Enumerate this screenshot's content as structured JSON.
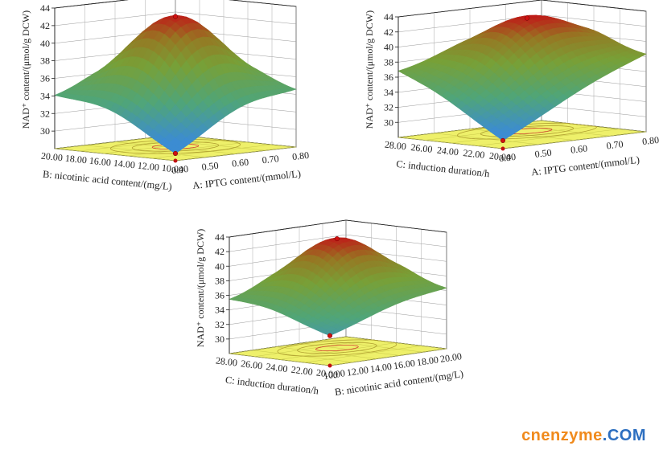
{
  "chart_data": [
    {
      "type": "surface",
      "zlabel": "NAD⁺ content/(μmol/g DCW)",
      "zticks": [
        "30",
        "32",
        "34",
        "36",
        "38",
        "40",
        "42",
        "44"
      ],
      "zlim": [
        28,
        44
      ],
      "x_axis": {
        "label": "A: IPTG content/(mmol/L)",
        "ticks": [
          "0.40",
          "0.50",
          "0.60",
          "0.70",
          "0.80"
        ],
        "range": [
          0.4,
          0.8
        ]
      },
      "y_axis": {
        "label": "B: nicotinic acid content/(mg/L)",
        "ticks": [
          "10.00",
          "12.00",
          "14.00",
          "16.00",
          "18.00",
          "20.00"
        ],
        "range": [
          10,
          20
        ]
      },
      "corner_values": {
        "x_min_y_min": 28.5,
        "x_max_y_min": 34.0,
        "x_min_y_max": 33.5,
        "x_max_y_max": 34.0
      },
      "peak": {
        "x": 0.62,
        "y": 15.5,
        "z": 42.8
      }
    },
    {
      "type": "surface",
      "zlabel": "NAD⁺ content/(μmol/g DCW)",
      "zticks": [
        "30",
        "32",
        "34",
        "36",
        "38",
        "40",
        "42",
        "44"
      ],
      "zlim": [
        28,
        44
      ],
      "x_axis": {
        "label": "A: IPTG content/(mmol/L)",
        "ticks": [
          "0.40",
          "0.50",
          "0.60",
          "0.70",
          "0.80"
        ],
        "range": [
          0.4,
          0.8
        ]
      },
      "y_axis": {
        "label": "C: induction duration/h",
        "ticks": [
          "20.00",
          "22.00",
          "24.00",
          "26.00",
          "28.00"
        ],
        "range": [
          20,
          28
        ]
      },
      "corner_values": {
        "x_min_y_min": 29.0,
        "x_max_y_min": 38.0,
        "x_min_y_max": 36.5,
        "x_max_y_max": 38.0
      },
      "peak": {
        "x": 0.65,
        "y": 25.0,
        "z": 43.0
      }
    },
    {
      "type": "surface",
      "zlabel": "NAD⁺ content/(μmol/g DCW)",
      "zticks": [
        "30",
        "32",
        "34",
        "36",
        "38",
        "40",
        "42",
        "44"
      ],
      "zlim": [
        28,
        44
      ],
      "x_axis": {
        "label": "B: nicotinic acid content/(mg/L)",
        "ticks": [
          "10.00",
          "12.00",
          "14.00",
          "16.00",
          "18.00",
          "20.00"
        ],
        "range": [
          10,
          20
        ]
      },
      "y_axis": {
        "label": "C: induction duration/h",
        "ticks": [
          "20.00",
          "22.00",
          "24.00",
          "26.00",
          "28.00"
        ],
        "range": [
          20,
          28
        ]
      },
      "corner_values": {
        "x_min_y_min": 32.0,
        "x_max_y_min": 36.0,
        "x_min_y_max": 35.0,
        "x_max_y_max": 36.0
      },
      "peak": {
        "x": 16.0,
        "y": 25.0,
        "z": 43.0
      }
    }
  ],
  "watermark": {
    "part1": "cnenzyme",
    "part2": ".COM"
  }
}
